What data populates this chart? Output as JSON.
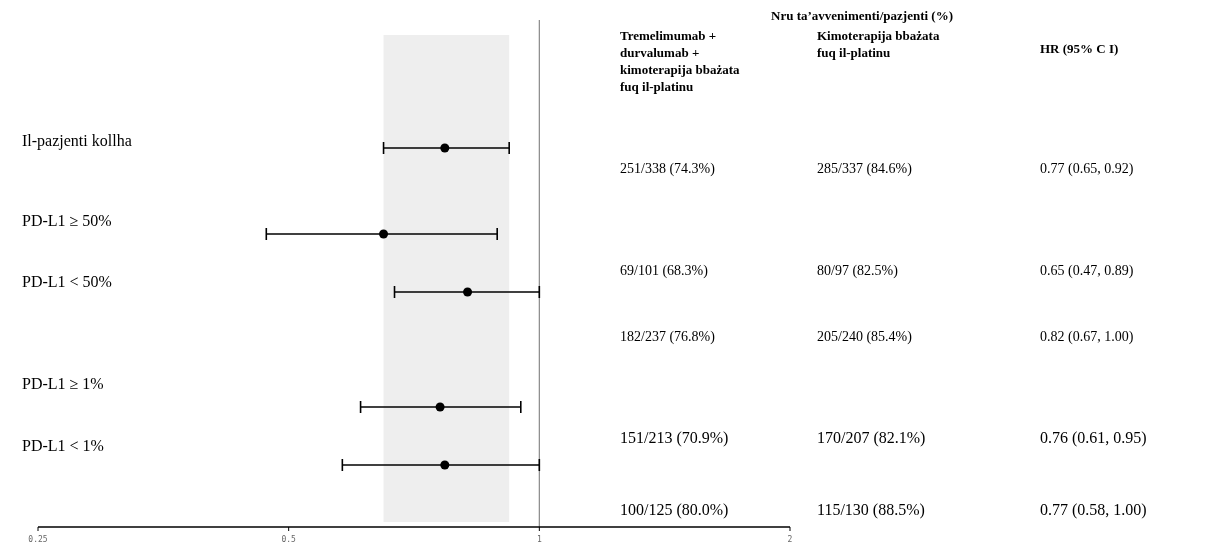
{
  "chart_data": {
    "type": "scatter",
    "orientation": "horizontal",
    "log": "x",
    "marker": "circle",
    "color": "#000000",
    "categories": [
      "Il-pazjenti kollha",
      "PD-L1 ≥ 50%",
      "PD-L1 < 50%",
      "PD-L1 ≥ 1%",
      "PD-L1 < 1%"
    ],
    "values": [
      0.77,
      0.65,
      0.82,
      0.76,
      0.77
    ],
    "errors": [
      [
        0.65,
        0.92
      ],
      [
        0.47,
        0.89
      ],
      [
        0.67,
        1.0
      ],
      [
        0.61,
        0.95
      ],
      [
        0.58,
        1.0
      ]
    ],
    "xlim": [
      0.25,
      2
    ],
    "xticks": [
      0.25,
      0.5,
      1,
      2
    ],
    "ref_lines": [
      {
        "axis": "x",
        "value": 1,
        "color": "#888888"
      }
    ],
    "bands": [
      {
        "axis": "x",
        "from": 0.65,
        "to": 0.92,
        "color": "#eeeeee"
      }
    ],
    "annotations": [
      "Nru ta’avvenimenti/pazjenti (%)",
      "Tremelimumab + durvalumab + kimoterapija bbażata fuq il-platinu",
      "Kimoterapija bbażata fuq il-platinu",
      "HR (95% C I)",
      "251/338 (74.3%)",
      "285/337 (84.6%)",
      "0.77 (0.65, 0.92)",
      "69/101 (68.3%)",
      "80/97 (82.5%)",
      "0.65 (0.47, 0.89)",
      "182/237 (76.8%)",
      "205/240 (85.4%)",
      "0.82 (0.67, 1.00)",
      "151/213 (70.9%)",
      "170/207 (82.1%)",
      "0.76 (0.61, 0.95)",
      "100/125 (80.0%)",
      "115/130 (88.5%)",
      "0.77 (0.58, 1.00)"
    ]
  }
}
